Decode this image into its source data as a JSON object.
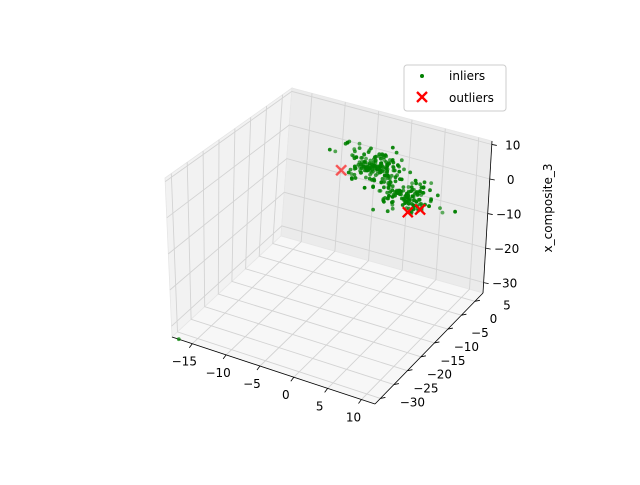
{
  "chart_data": {
    "type": "scatter",
    "projection": "3d",
    "title": "",
    "xlabel": "",
    "ylabel": "",
    "zlabel": "x_composite_3",
    "xlim": [
      -18,
      12
    ],
    "ylim": [
      -32,
      8
    ],
    "zlim": [
      -33,
      11
    ],
    "x_ticks": [
      -15,
      -10,
      -5,
      0,
      5,
      10
    ],
    "y_ticks": [
      -30,
      -25,
      -20,
      -15,
      -10,
      -5,
      0,
      5
    ],
    "z_ticks": [
      -30,
      -20,
      -10,
      0,
      10
    ],
    "x_tick_labels": [
      "−15",
      "−10",
      "−5",
      "0",
      "5",
      "10"
    ],
    "y_tick_labels": [
      "−30",
      "−25",
      "−20",
      "−15",
      "−10",
      "−5",
      "0",
      "5"
    ],
    "z_tick_labels": [
      "−30",
      "−20",
      "−10",
      "0",
      "10"
    ],
    "grid": true,
    "legend_position": "top-right",
    "series": [
      {
        "name": "inliers",
        "marker": "dot",
        "color": "#008000",
        "note": "a dense cluster of roughly 300 points centred near x≈1, y≈0, z≈0, plus one isolated point",
        "cluster_center": [
          1,
          0,
          0
        ],
        "cluster_spread": [
          2,
          2,
          2
        ],
        "cluster_size": 300,
        "points": [
          [
            -17,
            -32,
            -33
          ]
        ]
      },
      {
        "name": "outliers",
        "marker": "x",
        "color": "#ff0000",
        "points": [
          [
            -7.5,
            2,
            -3
          ],
          [
            -7.5,
            2.2,
            -3.2
          ],
          [
            4.7,
            -3.2,
            -3.5
          ],
          [
            6,
            -2,
            -3
          ]
        ]
      }
    ]
  },
  "colors": {
    "inlier": "#008000",
    "outlier": "#ff0000",
    "pane": "#f2f2f2",
    "grid": "#d9d9d9"
  }
}
